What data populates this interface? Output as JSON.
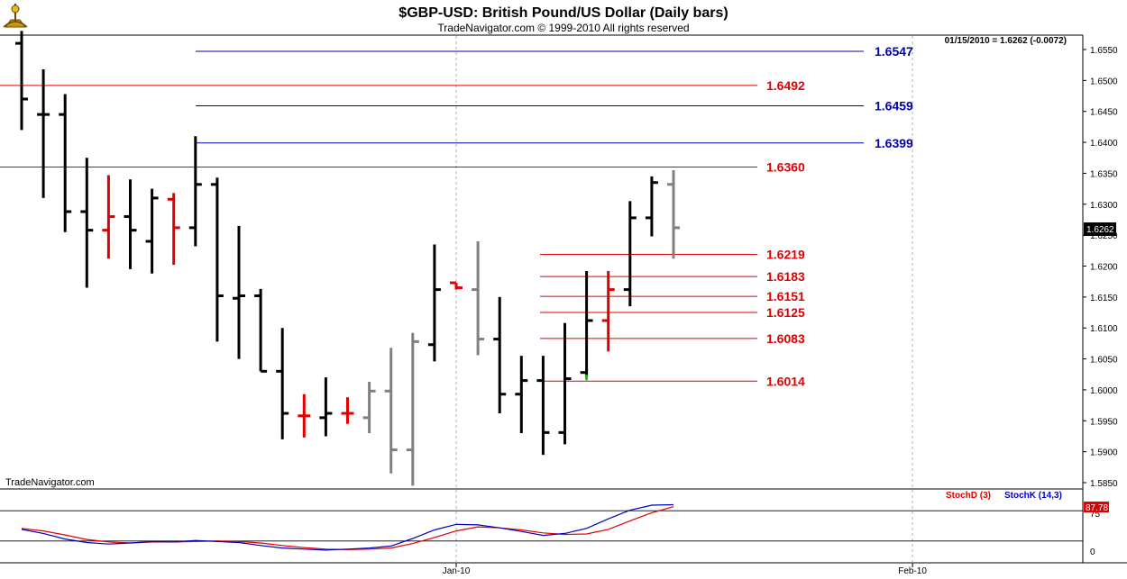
{
  "header": {
    "title": "$GBP-USD:  British Pound/US Dollar  (Daily bars)",
    "subtitle": "TradeNavigator.com © 1999-2010 All rights reserved",
    "quote": "01/15/2010 = 1.6262 (-0.0072)",
    "last_price_label": "1.6262",
    "watermark": "TradeNavigator.com"
  },
  "colors": {
    "up": "#000000",
    "down": "#e00000",
    "neutral": "#808080",
    "blue_level": "#0000b0",
    "red_level": "#e00000",
    "stoch_d": "#e00000",
    "stoch_k": "#0000c0",
    "last_price_bg": "#000000"
  },
  "chart_data": [
    {
      "type": "ohlc",
      "title": "$GBP-USD:  British Pound/US Dollar  (Daily bars)",
      "ylim": [
        1.584,
        1.658
      ],
      "y_ticks": [
        "1.6550",
        "1.6500",
        "1.6450",
        "1.6400",
        "1.6350",
        "1.6300",
        "1.6250",
        "1.6200",
        "1.6150",
        "1.6100",
        "1.6050",
        "1.6000",
        "1.5950",
        "1.5900",
        "1.5850"
      ],
      "x_ticks": [
        {
          "label": "Jan-10",
          "bar": 20
        },
        {
          "label": "Feb-10",
          "bar": 41
        }
      ],
      "bars": [
        {
          "o": 1.656,
          "h": 1.658,
          "l": 1.642,
          "c": 1.647,
          "color": "black"
        },
        {
          "o": 1.6445,
          "h": 1.6518,
          "l": 1.631,
          "c": 1.6445,
          "color": "black"
        },
        {
          "o": 1.6445,
          "h": 1.6478,
          "l": 1.6255,
          "c": 1.6288,
          "color": "black"
        },
        {
          "o": 1.6288,
          "h": 1.6375,
          "l": 1.6165,
          "c": 1.6258,
          "color": "black"
        },
        {
          "o": 1.6258,
          "h": 1.6347,
          "l": 1.6212,
          "c": 1.628,
          "color": "red"
        },
        {
          "o": 1.628,
          "h": 1.634,
          "l": 1.6195,
          "c": 1.6258,
          "color": "black"
        },
        {
          "o": 1.624,
          "h": 1.6325,
          "l": 1.6188,
          "c": 1.631,
          "color": "black"
        },
        {
          "o": 1.6308,
          "h": 1.6318,
          "l": 1.6202,
          "c": 1.6262,
          "color": "red"
        },
        {
          "o": 1.6262,
          "h": 1.641,
          "l": 1.6232,
          "c": 1.6332,
          "color": "black"
        },
        {
          "o": 1.6332,
          "h": 1.6343,
          "l": 1.6078,
          "c": 1.6152,
          "color": "black"
        },
        {
          "o": 1.6148,
          "h": 1.6265,
          "l": 1.605,
          "c": 1.6152,
          "color": "black"
        },
        {
          "o": 1.6152,
          "h": 1.6163,
          "l": 1.603,
          "c": 1.603,
          "color": "black"
        },
        {
          "o": 1.603,
          "h": 1.61,
          "l": 1.592,
          "c": 1.5962,
          "color": "black"
        },
        {
          "o": 1.5958,
          "h": 1.5993,
          "l": 1.5923,
          "c": 1.5958,
          "color": "red"
        },
        {
          "o": 1.5955,
          "h": 1.602,
          "l": 1.5925,
          "c": 1.5962,
          "color": "black"
        },
        {
          "o": 1.5962,
          "h": 1.5988,
          "l": 1.5945,
          "c": 1.5962,
          "color": "red"
        },
        {
          "o": 1.5955,
          "h": 1.6013,
          "l": 1.593,
          "c": 1.5998,
          "color": "gray"
        },
        {
          "o": 1.5998,
          "h": 1.6068,
          "l": 1.5865,
          "c": 1.5903,
          "color": "gray"
        },
        {
          "o": 1.5903,
          "h": 1.6092,
          "l": 1.5845,
          "c": 1.6078,
          "color": "gray"
        },
        {
          "o": 1.6073,
          "h": 1.6235,
          "l": 1.6046,
          "c": 1.6162,
          "color": "black"
        },
        {
          "o": 1.6173,
          "h": 1.6173,
          "l": 1.6162,
          "c": 1.6165,
          "color": "red"
        },
        {
          "o": 1.6162,
          "h": 1.624,
          "l": 1.6056,
          "c": 1.6082,
          "color": "gray"
        },
        {
          "o": 1.6082,
          "h": 1.615,
          "l": 1.5962,
          "c": 1.5993,
          "color": "black"
        },
        {
          "o": 1.5993,
          "h": 1.6055,
          "l": 1.593,
          "c": 1.6015,
          "color": "black"
        },
        {
          "o": 1.6015,
          "h": 1.6055,
          "l": 1.5895,
          "c": 1.5931,
          "color": "black"
        },
        {
          "o": 1.5931,
          "h": 1.6108,
          "l": 1.5912,
          "c": 1.6018,
          "color": "black"
        },
        {
          "o": 1.6028,
          "h": 1.6192,
          "l": 1.602,
          "c": 1.6112,
          "color": "black"
        },
        {
          "o": 1.6112,
          "h": 1.6192,
          "l": 1.6062,
          "c": 1.6162,
          "color": "red"
        },
        {
          "o": 1.6162,
          "h": 1.6305,
          "l": 1.6135,
          "c": 1.6278,
          "color": "black"
        },
        {
          "o": 1.6278,
          "h": 1.6345,
          "l": 1.6248,
          "c": 1.6335,
          "color": "black"
        },
        {
          "o": 1.6332,
          "h": 1.6355,
          "l": 1.6212,
          "c": 1.6262,
          "color": "gray"
        }
      ],
      "lows_marker": {
        "bar": 26,
        "value": 1.602,
        "color": "#00cc00"
      },
      "levels": [
        {
          "value": 1.6547,
          "label": "1.6547",
          "color": "blue",
          "start_bar": 8
        },
        {
          "value": 1.6492,
          "label": "1.6492",
          "color": "red",
          "start_bar": -1
        },
        {
          "value": 1.6459,
          "label": "1.6459",
          "color": "blue",
          "start_bar": 8
        },
        {
          "value": 1.6399,
          "label": "1.6399",
          "color": "blue",
          "start_bar": 8
        },
        {
          "value": 1.636,
          "label": "1.6360",
          "color": "red",
          "start_bar": -1
        },
        {
          "value": 1.6219,
          "label": "1.6219",
          "color": "red",
          "start_bar": 24
        },
        {
          "value": 1.6183,
          "label": "1.6183",
          "color": "red",
          "start_bar": 24
        },
        {
          "value": 1.6151,
          "label": "1.6151",
          "color": "red",
          "start_bar": 24
        },
        {
          "value": 1.6125,
          "label": "1.6125",
          "color": "red",
          "start_bar": 24
        },
        {
          "value": 1.6083,
          "label": "1.6083",
          "color": "red",
          "start_bar": 24
        },
        {
          "value": 1.6014,
          "label": "1.6014",
          "color": "red",
          "start_bar": 24
        }
      ]
    },
    {
      "type": "line",
      "legend": [
        "StochD (3)",
        "StochK (14,3)"
      ],
      "ylim": [
        -10,
        110
      ],
      "y_ticks": [
        {
          "label": "75",
          "value": 75
        },
        {
          "label": "0",
          "value": 0
        }
      ],
      "reference_lines": [
        80,
        20
      ],
      "last_value_label": "87.78",
      "series": [
        {
          "name": "StochD (3)",
          "color": "red",
          "values": [
            45,
            40,
            32,
            23,
            18,
            16,
            18,
            18,
            19,
            20,
            19,
            16,
            11,
            7,
            4,
            3,
            4,
            6,
            15,
            27,
            40,
            48,
            46,
            42,
            36,
            33,
            34,
            43,
            60,
            76,
            88
          ]
        },
        {
          "name": "StochK (14,3)",
          "color": "blue",
          "values": [
            43,
            35,
            24,
            17,
            14,
            16,
            19,
            18,
            21,
            19,
            17,
            11,
            6,
            4,
            2,
            4,
            6,
            10,
            25,
            42,
            53,
            52,
            46,
            39,
            31,
            35,
            45,
            64,
            81,
            91,
            92
          ]
        }
      ]
    }
  ]
}
